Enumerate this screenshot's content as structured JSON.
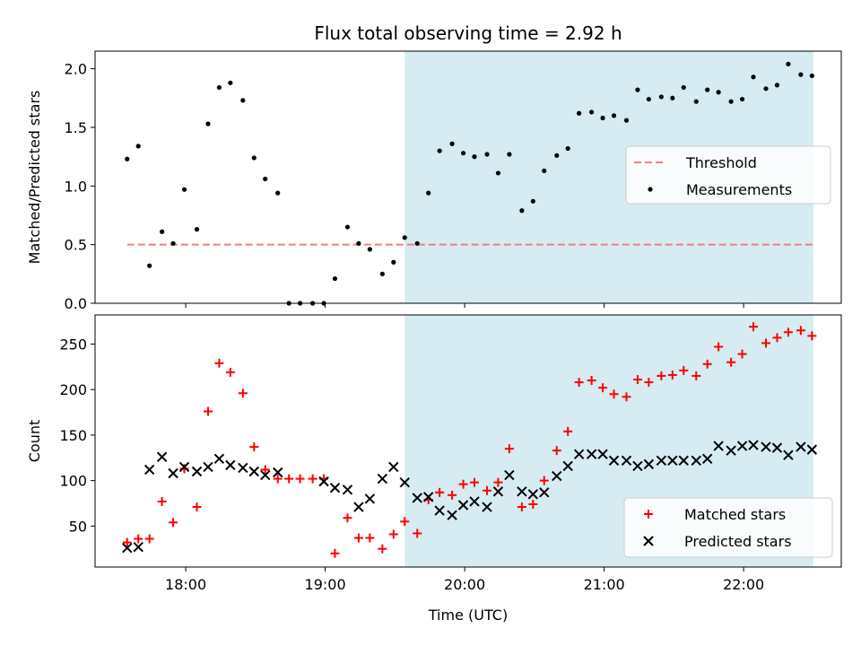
{
  "figure": {
    "title": "Flux total observing time = 2.92 h",
    "xlabel": "Time (UTC)",
    "x_tick_labels": [
      "18:00",
      "19:00",
      "20:00",
      "21:00",
      "22:00"
    ]
  },
  "chart_data": [
    {
      "type": "scatter",
      "title": "Flux total observing time = 2.92 h",
      "xlabel": "",
      "ylabel": "Matched/Predicted stars",
      "x_unit": "hours (UTC)",
      "xlim": [
        17.35,
        22.7
      ],
      "ylim": [
        0,
        2.15
      ],
      "yticks": [
        0.0,
        0.5,
        1.0,
        1.5,
        2.0
      ],
      "y_tick_labels": [
        "0.0",
        "0.5",
        "1.0",
        "1.5",
        "2.0"
      ],
      "highlight_span": [
        19.57,
        22.5
      ],
      "legend": {
        "position": "center-right",
        "entries": [
          "Threshold",
          "Measurements"
        ]
      },
      "series": [
        {
          "name": "Threshold",
          "style": "dashed-line",
          "color": "#f08080",
          "x": [
            17.58,
            22.5
          ],
          "y": [
            0.5,
            0.5
          ]
        },
        {
          "name": "Measurements",
          "style": "dot",
          "color": "#000000",
          "x": [
            17.58,
            17.66,
            17.74,
            17.83,
            17.91,
            17.99,
            18.08,
            18.16,
            18.24,
            18.32,
            18.41,
            18.49,
            18.57,
            18.66,
            18.74,
            18.82,
            18.91,
            18.99,
            19.07,
            19.16,
            19.24,
            19.32,
            19.41,
            19.49,
            19.57,
            19.66,
            19.74,
            19.82,
            19.91,
            19.99,
            20.07,
            20.16,
            20.24,
            20.32,
            20.41,
            20.49,
            20.57,
            20.66,
            20.74,
            20.82,
            20.91,
            20.99,
            21.07,
            21.16,
            21.24,
            21.32,
            21.41,
            21.49,
            21.57,
            21.66,
            21.74,
            21.82,
            21.91,
            21.99,
            22.07,
            22.16,
            22.24,
            22.32,
            22.41,
            22.49
          ],
          "y": [
            1.23,
            1.34,
            0.32,
            0.61,
            0.51,
            0.97,
            0.63,
            1.53,
            1.84,
            1.88,
            1.73,
            1.24,
            1.06,
            0.94,
            0.0,
            0.0,
            0.0,
            0.0,
            0.21,
            0.65,
            0.51,
            0.46,
            0.25,
            0.35,
            0.56,
            0.51,
            0.94,
            1.3,
            1.36,
            1.28,
            1.25,
            1.27,
            1.11,
            1.27,
            0.79,
            0.87,
            1.13,
            1.26,
            1.32,
            1.62,
            1.63,
            1.58,
            1.6,
            1.56,
            1.82,
            1.74,
            1.76,
            1.75,
            1.84,
            1.72,
            1.82,
            1.8,
            1.72,
            1.74,
            1.93,
            1.83,
            1.86,
            2.04,
            1.95,
            1.94
          ]
        }
      ]
    },
    {
      "type": "scatter",
      "xlabel": "Time (UTC)",
      "ylabel": "Count",
      "x_unit": "hours (UTC)",
      "xlim": [
        17.35,
        22.7
      ],
      "ylim": [
        5,
        282
      ],
      "yticks": [
        50,
        100,
        150,
        200,
        250
      ],
      "y_tick_labels": [
        "50",
        "100",
        "150",
        "200",
        "250"
      ],
      "highlight_span": [
        19.57,
        22.5
      ],
      "legend": {
        "position": "lower-right",
        "entries": [
          "Matched stars",
          "Predicted stars"
        ]
      },
      "series": [
        {
          "name": "Matched stars",
          "marker": "plus",
          "color": "#ff0000",
          "x": [
            17.58,
            17.66,
            17.74,
            17.83,
            17.91,
            17.99,
            18.08,
            18.16,
            18.24,
            18.32,
            18.41,
            18.49,
            18.57,
            18.66,
            18.74,
            18.82,
            18.91,
            18.99,
            19.07,
            19.16,
            19.24,
            19.32,
            19.41,
            19.49,
            19.57,
            19.66,
            19.74,
            19.82,
            19.91,
            19.99,
            20.07,
            20.16,
            20.24,
            20.32,
            20.41,
            20.49,
            20.57,
            20.66,
            20.74,
            20.82,
            20.91,
            20.99,
            21.07,
            21.16,
            21.24,
            21.32,
            21.41,
            21.49,
            21.57,
            21.66,
            21.74,
            21.82,
            21.91,
            21.99,
            22.07,
            22.16,
            22.24,
            22.32,
            22.41,
            22.49
          ],
          "y": [
            32,
            36,
            36,
            77,
            54,
            113,
            71,
            176,
            229,
            219,
            196,
            137,
            112,
            102,
            102,
            102,
            102,
            102,
            20,
            59,
            37,
            37,
            25,
            41,
            55,
            42,
            79,
            87,
            84,
            96,
            98,
            89,
            98,
            135,
            71,
            74,
            100,
            133,
            154,
            208,
            210,
            202,
            195,
            192,
            211,
            208,
            215,
            216,
            221,
            215,
            228,
            247,
            230,
            239,
            269,
            251,
            257,
            263,
            265,
            259
          ]
        },
        {
          "name": "Predicted stars",
          "marker": "x",
          "color": "#000000",
          "x": [
            17.58,
            17.66,
            17.74,
            17.83,
            17.91,
            17.99,
            18.08,
            18.16,
            18.24,
            18.32,
            18.41,
            18.49,
            18.57,
            18.66,
            18.99,
            19.07,
            19.16,
            19.24,
            19.32,
            19.41,
            19.49,
            19.57,
            19.66,
            19.74,
            19.82,
            19.91,
            19.99,
            20.07,
            20.16,
            20.24,
            20.32,
            20.41,
            20.49,
            20.57,
            20.66,
            20.74,
            20.82,
            20.91,
            20.99,
            21.07,
            21.16,
            21.24,
            21.32,
            21.41,
            21.49,
            21.57,
            21.66,
            21.74,
            21.82,
            21.91,
            21.99,
            22.07,
            22.16,
            22.24,
            22.32,
            22.41,
            22.49
          ],
          "y": [
            26,
            27,
            112,
            126,
            108,
            115,
            110,
            115,
            124,
            117,
            114,
            110,
            106,
            109,
            99,
            92,
            90,
            71,
            80,
            102,
            115,
            98,
            81,
            82,
            67,
            62,
            73,
            77,
            71,
            88,
            106,
            88,
            85,
            87,
            105,
            116,
            129,
            129,
            129,
            122,
            122,
            116,
            118,
            122,
            122,
            122,
            122,
            124,
            138,
            133,
            138,
            139,
            137,
            136,
            128,
            137,
            134
          ]
        }
      ]
    }
  ]
}
